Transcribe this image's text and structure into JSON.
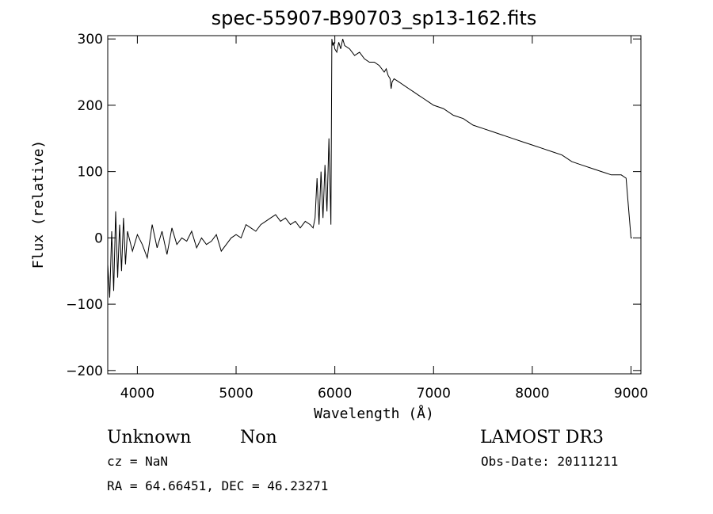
{
  "chart_data": {
    "type": "line",
    "title": "spec-55907-B90703_sp13-162.fits",
    "xlabel": "Wavelength (Å)",
    "ylabel": "Flux (relative)",
    "xlim": [
      3700,
      9100
    ],
    "ylim": [
      -205,
      305
    ],
    "grid": false,
    "x_ticks": [
      4000,
      5000,
      6000,
      7000,
      8000,
      9000
    ],
    "y_ticks": [
      -200,
      -100,
      0,
      100,
      200,
      300
    ],
    "series": [
      {
        "x": [
          3700,
          3720,
          3740,
          3760,
          3780,
          3800,
          3820,
          3840,
          3860,
          3880,
          3900,
          3950,
          4000,
          4050,
          4100,
          4150,
          4200,
          4250,
          4300,
          4350,
          4400,
          4450,
          4500,
          4550,
          4600,
          4650,
          4700,
          4750,
          4800,
          4850,
          4900,
          4950,
          5000,
          5050,
          5100,
          5150,
          5200,
          5250,
          5300,
          5350,
          5400,
          5450,
          5500,
          5550,
          5600,
          5650,
          5700,
          5750,
          5780,
          5800,
          5820,
          5840,
          5860,
          5880,
          5900,
          5920,
          5940,
          5960,
          5970,
          5980,
          5990,
          6000,
          6020,
          6040,
          6060,
          6080,
          6100,
          6150,
          6200,
          6250,
          6300,
          6350,
          6400,
          6450,
          6500,
          6520,
          6540,
          6560,
          6570,
          6580,
          6600,
          6650,
          6700,
          6750,
          6800,
          6850,
          6900,
          6950,
          7000,
          7100,
          7200,
          7300,
          7400,
          7500,
          7600,
          7700,
          7800,
          7900,
          8000,
          8100,
          8200,
          8300,
          8400,
          8500,
          8600,
          8700,
          8800,
          8900,
          8950,
          9000,
          9010
        ],
        "y": [
          -40,
          -90,
          10,
          -80,
          40,
          -60,
          20,
          -50,
          30,
          -40,
          10,
          -20,
          5,
          -10,
          -30,
          20,
          -15,
          10,
          -25,
          15,
          -10,
          0,
          -5,
          10,
          -15,
          0,
          -10,
          -5,
          5,
          -20,
          -10,
          0,
          5,
          0,
          20,
          15,
          10,
          20,
          25,
          30,
          35,
          25,
          30,
          20,
          25,
          15,
          25,
          20,
          15,
          30,
          90,
          20,
          100,
          30,
          110,
          40,
          150,
          20,
          300,
          290,
          295,
          285,
          280,
          295,
          285,
          300,
          290,
          285,
          275,
          280,
          270,
          265,
          265,
          260,
          250,
          255,
          245,
          240,
          225,
          235,
          240,
          235,
          230,
          225,
          220,
          215,
          210,
          205,
          200,
          195,
          185,
          180,
          170,
          165,
          160,
          155,
          150,
          145,
          140,
          135,
          130,
          125,
          115,
          110,
          105,
          100,
          95,
          95,
          90,
          0,
          0
        ]
      }
    ]
  },
  "annotations": {
    "object_class": "Unknown",
    "subclass": "Non",
    "survey": "LAMOST DR3",
    "cz": "cz = NaN",
    "obs_date": "Obs-Date: 20111211",
    "coords": "RA =  64.66451, DEC =  46.23271"
  }
}
